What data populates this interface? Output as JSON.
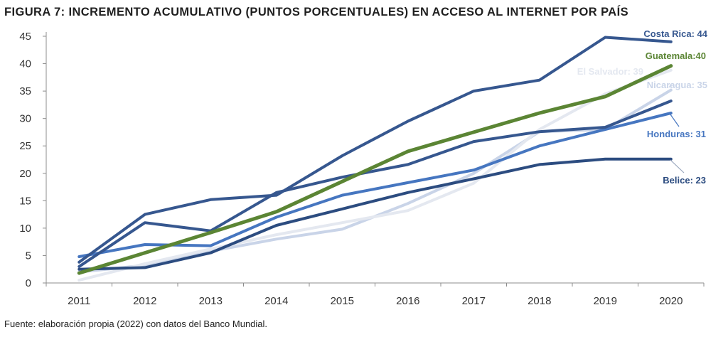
{
  "title": "FIGURA 7: INCREMENTO ACUMULATIVO (PUNTOS PORCENTUALES) EN ACCESO AL INTERNET POR PAÍS",
  "source": "Fuente: elaboración propia (2022) con datos del Banco Mundial.",
  "chart_data": {
    "type": "line",
    "title": "FIGURA 7: INCREMENTO ACUMULATIVO (PUNTOS PORCENTUALES) EN ACCESO AL INTERNET POR PAÍS",
    "xlabel": "",
    "ylabel": "",
    "ylim": [
      0,
      45
    ],
    "yticks": [
      0,
      5,
      10,
      15,
      20,
      25,
      30,
      35,
      40,
      45
    ],
    "grid": false,
    "categories": [
      "2011",
      "2012",
      "2013",
      "2014",
      "2015",
      "2016",
      "2017",
      "2018",
      "2019",
      "2020"
    ],
    "series": [
      {
        "color": "#c9d4e8",
        "label": "Nicaragua: 35",
        "values": [
          2.0,
          3.2,
          5.8,
          8.0,
          9.8,
          14.5,
          20.0,
          27.6,
          28.0,
          35.2
        ]
      },
      {
        "color": "#e4e8f0",
        "label": "El Salvador: 39",
        "values": [
          0.5,
          3.5,
          6.2,
          8.8,
          11.0,
          13.2,
          18.2,
          28.0,
          34.5,
          38.8
        ]
      },
      {
        "color": "#2c4c80",
        "label": "Belice: 23",
        "values": [
          2.5,
          2.8,
          5.5,
          10.5,
          13.5,
          16.5,
          19.0,
          21.6,
          22.6,
          22.6
        ]
      },
      {
        "color": "#4676c0",
        "label": "Honduras: 31",
        "values": [
          4.8,
          7.0,
          6.8,
          12.0,
          16.0,
          18.3,
          20.6,
          25.0,
          28.0,
          31.0
        ]
      },
      {
        "color": "#36578f",
        "values": [
          3.0,
          11.0,
          9.5,
          16.5,
          19.3,
          21.6,
          25.8,
          27.6,
          28.4,
          33.2
        ]
      },
      {
        "color": "#36578f",
        "label": "Costa Rica: 44",
        "values": [
          3.8,
          12.5,
          15.2,
          16.0,
          23.2,
          29.5,
          35.0,
          37.0,
          44.8,
          44.0
        ]
      },
      {
        "color": "#5b8534",
        "label": "Guatemala:40",
        "values": [
          1.8,
          5.5,
          9.2,
          13.0,
          18.5,
          24.0,
          27.5,
          31.0,
          34.0,
          39.6
        ]
      }
    ],
    "annotations": [
      "Costa Rica: 44",
      "Guatemala:40",
      "El Salvador: 39",
      "Nicaragua: 35",
      "Honduras: 31",
      "Belice: 23"
    ]
  }
}
